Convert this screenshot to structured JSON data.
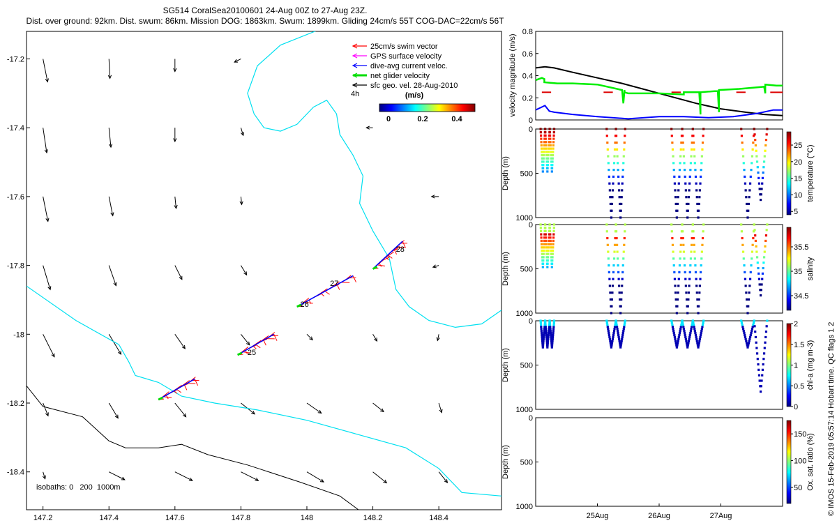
{
  "header": {
    "line1": "SG514 CoralSea20100601 24-Aug 00Z to 27-Aug 23Z.",
    "line2": "Dist. over ground: 92km. Dist. swum: 86km. Mission DOG: 1863km. Swum: 1899km. Gliding 24cm/s 55T COG-DAC=22cm/s 56T"
  },
  "watermark": "© IMOS 15-Feb-2019 05:57:14 Hobart time. QC flags 1 2",
  "legend": {
    "items": [
      {
        "label": "25cm/s swim vector",
        "color": "#ff0000"
      },
      {
        "label": "GPS surface velocity",
        "color": "#ff00ff"
      },
      {
        "label": "dive-avg current veloc.",
        "color": "#0000ff"
      },
      {
        "label": "net glider velocity",
        "color": "#00dd00"
      },
      {
        "label": "sfc geo. vel. 28-Aug-2010",
        "color": "#000000"
      }
    ],
    "scale_label": "4h",
    "colorbar_label": "(m/s)",
    "colorbar_ticks": [
      "0",
      "0.2",
      "0.4"
    ]
  },
  "map_isobath_note": "isobaths: 0   200  1000m",
  "colors": {
    "coast": "#00e0f0",
    "isobath": "#000000",
    "swim": "#ff0000",
    "dac": "#0000ff",
    "net": "#00dd00"
  },
  "chart_data": [
    {
      "type": "scatter",
      "title": "",
      "xlabel": "",
      "ylabel": "",
      "xlim": [
        147.15,
        148.59
      ],
      "ylim": [
        -18.51,
        -17.12
      ],
      "xticks": [
        "147.2",
        "147.4",
        "147.6",
        "147.8",
        "148",
        "148.2",
        "148.4"
      ],
      "yticks": [
        "-17.2",
        "-17.4",
        "-17.6",
        "-17.8",
        "-18",
        "-18.2",
        "-18.4"
      ],
      "coastline": [
        [
          148.05,
          -17.11
        ],
        [
          147.92,
          -17.16
        ],
        [
          147.85,
          -17.22
        ],
        [
          147.82,
          -17.3
        ],
        [
          147.84,
          -17.36
        ],
        [
          147.87,
          -17.4
        ],
        [
          147.92,
          -17.41
        ],
        [
          147.97,
          -17.39
        ],
        [
          148.02,
          -17.34
        ],
        [
          148.06,
          -17.32
        ],
        [
          148.09,
          -17.36
        ],
        [
          148.1,
          -17.42
        ],
        [
          148.14,
          -17.48
        ],
        [
          148.17,
          -17.54
        ],
        [
          148.16,
          -17.62
        ],
        [
          148.2,
          -17.7
        ],
        [
          148.25,
          -17.78
        ],
        [
          148.27,
          -17.87
        ],
        [
          148.31,
          -17.92
        ],
        [
          148.37,
          -17.96
        ],
        [
          148.45,
          -17.98
        ],
        [
          148.53,
          -17.97
        ],
        [
          148.59,
          -17.93
        ]
      ],
      "isobath_0": [
        [
          147.15,
          -17.86
        ],
        [
          147.3,
          -17.96
        ],
        [
          147.43,
          -18.03
        ],
        [
          147.46,
          -18.08
        ],
        [
          147.48,
          -18.12
        ],
        [
          147.55,
          -18.14
        ],
        [
          147.62,
          -18.18
        ],
        [
          147.72,
          -18.2
        ],
        [
          147.85,
          -18.22
        ],
        [
          148.0,
          -18.25
        ],
        [
          148.15,
          -18.29
        ],
        [
          148.3,
          -18.33
        ],
        [
          148.4,
          -18.39
        ],
        [
          148.47,
          -18.46
        ],
        [
          148.59,
          -18.47
        ]
      ],
      "isobath_1000": [
        [
          147.15,
          -18.15
        ],
        [
          147.2,
          -18.21
        ],
        [
          147.32,
          -18.24
        ],
        [
          147.4,
          -18.31
        ],
        [
          147.45,
          -18.33
        ],
        [
          147.55,
          -18.33
        ],
        [
          147.62,
          -18.32
        ],
        [
          147.7,
          -18.35
        ],
        [
          147.82,
          -18.38
        ],
        [
          147.98,
          -18.43
        ],
        [
          148.1,
          -18.47
        ],
        [
          148.17,
          -18.52
        ]
      ],
      "track_labels": [
        {
          "text": "25",
          "x": 147.82,
          "y": -18.06
        },
        {
          "text": "26",
          "x": 147.98,
          "y": -17.92
        },
        {
          "text": "27",
          "x": 148.07,
          "y": -17.86
        },
        {
          "text": "28",
          "x": 148.27,
          "y": -17.76
        }
      ],
      "track_segments": [
        {
          "lon0": 147.55,
          "lat0": -18.19,
          "lon1": 147.66,
          "lat1": -18.13
        },
        {
          "lon0": 147.79,
          "lat0": -18.06,
          "lon1": 147.9,
          "lat1": -18.0
        },
        {
          "lon0": 147.97,
          "lat0": -17.92,
          "lon1": 148.14,
          "lat1": -17.83
        },
        {
          "lon0": 148.2,
          "lat0": -17.81,
          "lon1": 148.29,
          "lat1": -17.73
        }
      ],
      "geo_vectors": [
        {
          "lon": 147.2,
          "lat": -17.2,
          "u": 0.2,
          "v": -1.0,
          "mag": 0.5
        },
        {
          "lon": 147.4,
          "lat": -17.2,
          "u": 0.05,
          "v": -1.0,
          "mag": 0.4
        },
        {
          "lon": 147.6,
          "lat": -17.2,
          "u": 0.0,
          "v": -1.0,
          "mag": 0.22
        },
        {
          "lon": 147.8,
          "lat": -17.2,
          "u": -1.0,
          "v": -0.5,
          "mag": 0.08
        },
        {
          "lon": 147.2,
          "lat": -17.4,
          "u": 0.15,
          "v": -1.0,
          "mag": 0.55
        },
        {
          "lon": 147.4,
          "lat": -17.4,
          "u": 0.1,
          "v": -1.0,
          "mag": 0.4
        },
        {
          "lon": 147.6,
          "lat": -17.4,
          "u": 0.0,
          "v": -1.0,
          "mag": 0.25
        },
        {
          "lon": 147.8,
          "lat": -17.4,
          "u": 0.3,
          "v": -1.0,
          "mag": 0.1
        },
        {
          "lon": 148.2,
          "lat": -17.4,
          "u": -1.0,
          "v": 0.0,
          "mag": 0.06
        },
        {
          "lon": 147.2,
          "lat": -17.6,
          "u": 0.2,
          "v": -1.0,
          "mag": 0.55
        },
        {
          "lon": 147.4,
          "lat": -17.6,
          "u": 0.2,
          "v": -1.0,
          "mag": 0.4
        },
        {
          "lon": 147.6,
          "lat": -17.6,
          "u": 0.1,
          "v": -1.0,
          "mag": 0.2
        },
        {
          "lon": 147.8,
          "lat": -17.6,
          "u": 0.1,
          "v": -1.0,
          "mag": 0.1
        },
        {
          "lon": 148.4,
          "lat": -17.6,
          "u": -1.0,
          "v": 0.0,
          "mag": 0.08
        },
        {
          "lon": 147.2,
          "lat": -17.8,
          "u": 0.3,
          "v": -1.0,
          "mag": 0.55
        },
        {
          "lon": 147.4,
          "lat": -17.8,
          "u": 0.35,
          "v": -1.0,
          "mag": 0.45
        },
        {
          "lon": 147.6,
          "lat": -17.8,
          "u": 0.5,
          "v": -1.0,
          "mag": 0.3
        },
        {
          "lon": 147.8,
          "lat": -17.8,
          "u": 0.6,
          "v": -1.0,
          "mag": 0.18
        },
        {
          "lon": 148.4,
          "lat": -17.8,
          "u": -1.0,
          "v": -0.3,
          "mag": 0.05
        },
        {
          "lon": 147.2,
          "lat": -18.0,
          "u": 0.5,
          "v": -1.0,
          "mag": 0.55
        },
        {
          "lon": 147.4,
          "lat": -18.0,
          "u": 0.6,
          "v": -1.0,
          "mag": 0.5
        },
        {
          "lon": 147.6,
          "lat": -18.0,
          "u": 0.7,
          "v": -1.0,
          "mag": 0.35
        },
        {
          "lon": 147.8,
          "lat": -18.0,
          "u": 0.8,
          "v": -1.0,
          "mag": 0.25
        },
        {
          "lon": 148.0,
          "lat": -18.0,
          "u": 1.0,
          "v": -1.0,
          "mag": 0.1
        },
        {
          "lon": 148.2,
          "lat": -18.0,
          "u": 0.6,
          "v": -1.0,
          "mag": 0.1
        },
        {
          "lon": 148.4,
          "lat": -18.0,
          "u": -0.2,
          "v": -1.0,
          "mag": 0.06
        },
        {
          "lon": 147.2,
          "lat": -18.2,
          "u": 0.4,
          "v": -1.0,
          "mag": 0.25
        },
        {
          "lon": 147.4,
          "lat": -18.2,
          "u": 0.6,
          "v": -1.0,
          "mag": 0.35
        },
        {
          "lon": 147.6,
          "lat": -18.2,
          "u": 0.8,
          "v": -1.0,
          "mag": 0.35
        },
        {
          "lon": 147.8,
          "lat": -18.2,
          "u": 1.0,
          "v": -0.8,
          "mag": 0.35
        },
        {
          "lon": 148.0,
          "lat": -18.2,
          "u": 1.0,
          "v": -0.7,
          "mag": 0.35
        },
        {
          "lon": 148.2,
          "lat": -18.2,
          "u": 1.0,
          "v": -0.8,
          "mag": 0.25
        },
        {
          "lon": 148.4,
          "lat": -18.2,
          "u": 0.3,
          "v": -1.0,
          "mag": 0.15
        },
        {
          "lon": 147.2,
          "lat": -18.4,
          "u": 0.3,
          "v": -1.0,
          "mag": 0.08
        },
        {
          "lon": 147.4,
          "lat": -18.4,
          "u": 1.0,
          "v": -0.5,
          "mag": 0.35
        },
        {
          "lon": 147.6,
          "lat": -18.4,
          "u": 1.0,
          "v": -0.5,
          "mag": 0.4
        },
        {
          "lon": 147.8,
          "lat": -18.4,
          "u": 1.0,
          "v": -0.5,
          "mag": 0.4
        },
        {
          "lon": 148.0,
          "lat": -18.4,
          "u": 1.0,
          "v": -0.6,
          "mag": 0.4
        },
        {
          "lon": 148.2,
          "lat": -18.4,
          "u": 1.0,
          "v": -0.8,
          "mag": 0.35
        },
        {
          "lon": 148.4,
          "lat": -18.4,
          "u": 0.8,
          "v": -1.0,
          "mag": 0.25
        }
      ]
    },
    {
      "type": "line",
      "title": "",
      "ylabel": "velocity magnitude (m/s)",
      "xlim": [
        0.0,
        4.0
      ],
      "ylim": [
        0,
        0.8
      ],
      "yticks": [
        "0",
        "0.2",
        "0.4",
        "0.6",
        "0.8"
      ],
      "series": [
        {
          "color": "#000000",
          "x": [
            0.0,
            0.15,
            0.3,
            0.6,
            1.0,
            1.4,
            1.8,
            2.2,
            2.6,
            3.0,
            3.4,
            3.7,
            4.0
          ],
          "y": [
            0.47,
            0.48,
            0.47,
            0.43,
            0.38,
            0.33,
            0.27,
            0.21,
            0.15,
            0.1,
            0.07,
            0.05,
            0.04
          ]
        },
        {
          "color": "#00ee00",
          "x": [
            0.0,
            0.1,
            0.14,
            0.14,
            0.35,
            0.6,
            1.0,
            1.4,
            1.42,
            1.44,
            1.44,
            1.5,
            2.0,
            2.4,
            2.4,
            2.6,
            2.65,
            2.67,
            2.67,
            2.9,
            2.95,
            2.97,
            2.97,
            3.3,
            3.7,
            3.72,
            3.72,
            3.9,
            4.0
          ],
          "y": [
            0.36,
            0.38,
            0.37,
            0.34,
            0.33,
            0.33,
            0.32,
            0.27,
            0.15,
            0.27,
            0.25,
            0.24,
            0.24,
            0.23,
            0.25,
            0.25,
            0.25,
            0.05,
            0.25,
            0.26,
            0.26,
            0.07,
            0.27,
            0.28,
            0.3,
            0.24,
            0.32,
            0.31,
            0.31
          ]
        },
        {
          "color": "#0000ff",
          "x": [
            0.0,
            0.15,
            0.22,
            0.3,
            0.6,
            1.0,
            1.5,
            2.0,
            2.4,
            2.8,
            3.2,
            3.6,
            3.85,
            4.0
          ],
          "y": [
            0.09,
            0.13,
            0.08,
            0.07,
            0.05,
            0.03,
            0.01,
            0.03,
            0.03,
            0.02,
            0.03,
            0.06,
            0.09,
            0.09
          ]
        },
        {
          "color": "#dd0000",
          "segments": [
            [
              0.1,
              0.25,
              0.25
            ],
            [
              1.1,
              1.25,
              0.25
            ],
            [
              2.2,
              2.35,
              0.25
            ],
            [
              3.25,
              3.4,
              0.25
            ],
            [
              3.8,
              4.0,
              0.25
            ]
          ]
        }
      ]
    },
    {
      "type": "scatter",
      "title": "",
      "ylabel": "Depth (m)",
      "ylim": [
        1000,
        0
      ],
      "yticks": [
        "0",
        "500",
        "1000"
      ],
      "colorbar_label": "temperature (°C)",
      "colorbar_ticks": [
        "5",
        "10",
        "15",
        "20",
        "25"
      ],
      "colorbar_range": [
        4,
        29
      ],
      "dive_groups": [
        {
          "start": 0.08,
          "width": 0.22,
          "count": 3,
          "max_depth": 480,
          "first_dive_shallow": 0
        },
        {
          "start": 1.15,
          "width": 0.3,
          "count": 2,
          "max_depth": 1000
        },
        {
          "start": 2.2,
          "width": 0.52,
          "count": 3,
          "max_depth": 1000
        },
        {
          "start": 3.33,
          "width": 0.42,
          "count": 2,
          "max_depth": 1000,
          "last_shallow": 800
        }
      ]
    },
    {
      "type": "scatter",
      "title": "",
      "ylabel": "Depth (m)",
      "ylim": [
        1000,
        0
      ],
      "yticks": [
        "0",
        "500",
        "1000"
      ],
      "colorbar_label": "salinity",
      "colorbar_ticks": [
        "34.5",
        "35",
        "35.5"
      ],
      "colorbar_range": [
        34.2,
        35.9
      ]
    },
    {
      "type": "scatter",
      "title": "",
      "ylabel": "Depth (m)",
      "ylim": [
        1000,
        0
      ],
      "yticks": [
        "0",
        "500",
        "1000"
      ],
      "colorbar_label": "chl-a (mg m-3)",
      "colorbar_ticks": [
        "0",
        "0.5",
        "1",
        "1.5",
        "2"
      ],
      "colorbar_range": [
        0,
        2
      ]
    },
    {
      "type": "scatter",
      "title": "",
      "xlabel": "",
      "ylabel": "Depth (m)",
      "ylim": [
        1000,
        0
      ],
      "yticks": [
        "0",
        "500",
        "1000"
      ],
      "xticks": [
        "25Aug",
        "26Aug",
        "27Aug"
      ],
      "xtick_positions": [
        1.0,
        2.0,
        3.0
      ],
      "colorbar_label": "Ox. sat. ratio (%)",
      "colorbar_ticks": [
        "50",
        "100",
        "150"
      ],
      "colorbar_range": [
        20,
        175
      ]
    }
  ]
}
